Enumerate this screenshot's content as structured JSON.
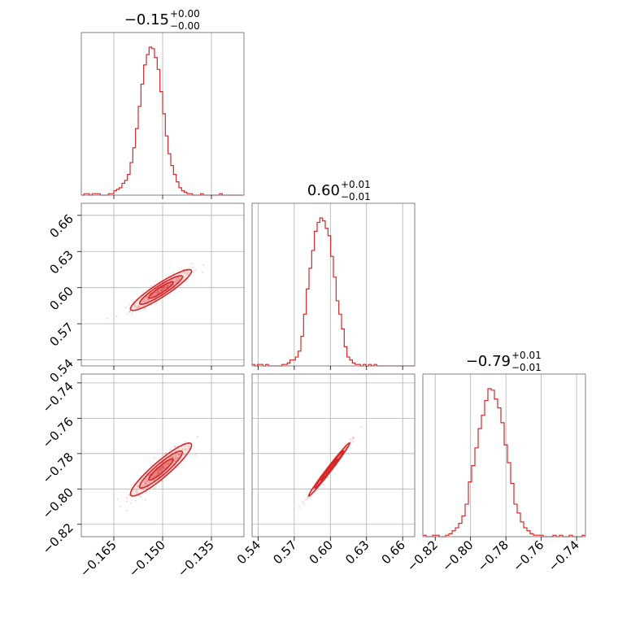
{
  "chart_data": {
    "type": "corner",
    "series_color": "#d62728",
    "params": [
      {
        "range": [
          -0.175,
          -0.125
        ],
        "ticks": [
          -0.165,
          -0.15,
          -0.135
        ],
        "tick_labels": [
          "−0.165",
          "−0.150",
          "−0.135"
        ],
        "title": {
          "main": "−0.15",
          "plus": "+0.00",
          "minus": "−0.00"
        }
      },
      {
        "range": [
          0.535,
          0.67
        ],
        "ticks": [
          0.54,
          0.57,
          0.6,
          0.63,
          0.66
        ],
        "tick_labels": [
          "0.54",
          "0.57",
          "0.60",
          "0.63",
          "0.66"
        ],
        "title": {
          "main": "0.60",
          "plus": "+0.01",
          "minus": "−0.01"
        }
      },
      {
        "range": [
          -0.827,
          -0.735
        ],
        "ticks": [
          -0.82,
          -0.8,
          -0.78,
          -0.76,
          -0.74
        ],
        "tick_labels": [
          "−0.82",
          "−0.80",
          "−0.78",
          "−0.76",
          "−0.74"
        ],
        "title": {
          "main": "−0.79",
          "plus": "+0.01",
          "minus": "−0.01"
        }
      }
    ],
    "histograms": [
      {
        "values": [
          0,
          1,
          1,
          0,
          1,
          1,
          1,
          0,
          0,
          0,
          1,
          1,
          3,
          4,
          5,
          8,
          10,
          14,
          22,
          32,
          45,
          60,
          75,
          88,
          95,
          100,
          99,
          93,
          85,
          70,
          55,
          40,
          28,
          20,
          14,
          9,
          5,
          3,
          2,
          1,
          1,
          0,
          0,
          0,
          1,
          0,
          0,
          0,
          0,
          0,
          0,
          1,
          0,
          0,
          0,
          0,
          0,
          0,
          0,
          0
        ]
      },
      {
        "values": [
          1,
          0,
          1,
          1,
          0,
          1,
          0,
          0,
          0,
          0,
          0,
          1,
          1,
          2,
          4,
          4,
          6,
          10,
          20,
          35,
          52,
          66,
          78,
          91,
          97,
          100,
          98,
          93,
          88,
          74,
          60,
          44,
          35,
          25,
          13,
          6,
          4,
          2,
          1,
          1,
          0,
          1,
          0,
          1,
          0,
          1,
          0,
          0,
          0,
          0,
          0,
          0,
          0,
          0,
          0,
          0,
          0,
          0,
          0,
          0
        ]
      },
      {
        "values": [
          1,
          0,
          0,
          1,
          1,
          0,
          0,
          1,
          2,
          4,
          6,
          9,
          14,
          22,
          37,
          48,
          60,
          73,
          82,
          92,
          100,
          99,
          93,
          87,
          77,
          62,
          50,
          36,
          22,
          16,
          10,
          6,
          4,
          2,
          1,
          1,
          1,
          0,
          0,
          0,
          1,
          0,
          1,
          0,
          0,
          1,
          0,
          0,
          0,
          1
        ]
      }
    ],
    "correlations": {
      "p1_p0": 0.92,
      "p2_p0": 0.92,
      "p2_p1": 0.99
    }
  }
}
